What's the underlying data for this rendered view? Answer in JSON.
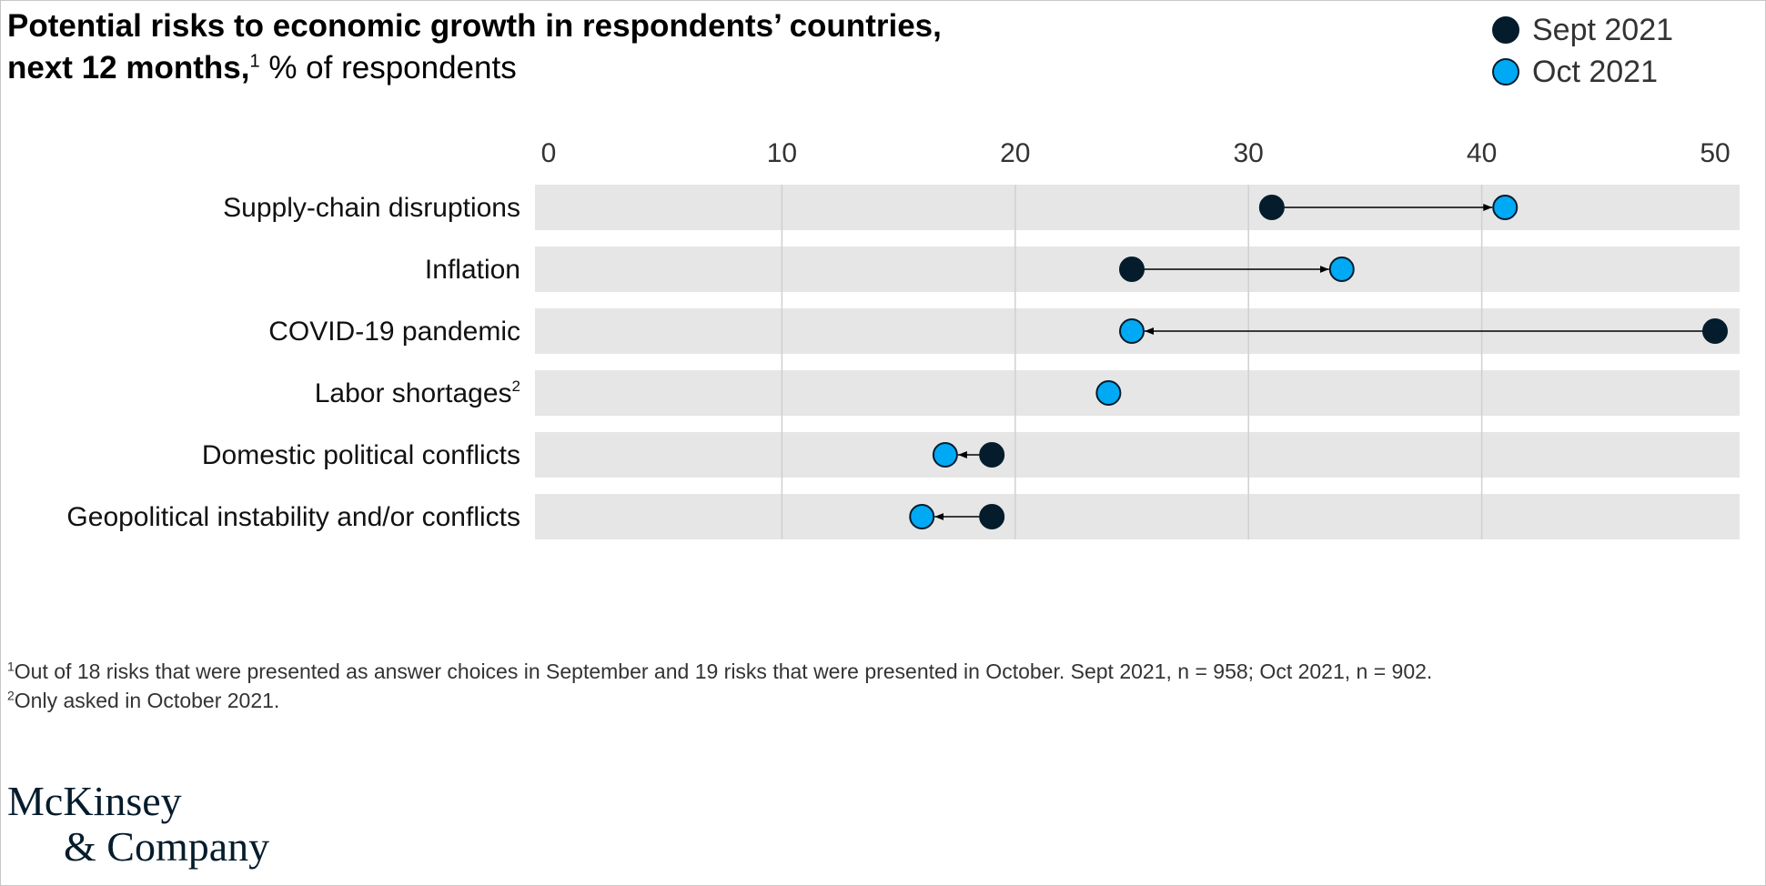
{
  "header": {
    "title_bold_line1": "Potential risks to economic growth in respondents’ countries,",
    "title_bold_line2": "next 12 months,",
    "title_footnote_mark": "1",
    "title_unit": "% of respondents"
  },
  "legend": {
    "items": [
      {
        "label": "Sept 2021",
        "color": "#051c2c"
      },
      {
        "label": "Oct 2021",
        "color": "#00a9f4"
      }
    ]
  },
  "chart_data": {
    "type": "dumbbell",
    "title": "Potential risks to economic growth in respondents’ countries, next 12 months, % of respondents",
    "xlim": [
      0,
      50
    ],
    "x_ticks": [
      0,
      10,
      20,
      30,
      40,
      50
    ],
    "grid": true,
    "legend_position": "top-right",
    "categories": [
      {
        "label": "Supply-chain disruptions",
        "sup": ""
      },
      {
        "label": "Inflation",
        "sup": ""
      },
      {
        "label": "COVID-19 pandemic",
        "sup": ""
      },
      {
        "label": "Labor shortages",
        "sup": "2"
      },
      {
        "label": "Domestic political conflicts",
        "sup": ""
      },
      {
        "label": "Geopolitical instability and/or conflicts",
        "sup": ""
      }
    ],
    "series": [
      {
        "name": "Sept 2021",
        "color": "#051c2c",
        "values": [
          31,
          25,
          50,
          null,
          19,
          19
        ]
      },
      {
        "name": "Oct 2021",
        "color": "#00a9f4",
        "values": [
          41,
          34,
          25,
          24,
          17,
          16
        ]
      }
    ]
  },
  "notes": {
    "note1_mark": "1",
    "note1_text": "Out of 18 risks that were presented as answer choices in September and 19 risks that were presented in October. Sept 2021, n = 958; Oct 2021, n = 902.",
    "note2_mark": "2",
    "note2_text": "Only asked in October 2021."
  },
  "logo": {
    "line1": "McKinsey",
    "line2": "& Company"
  }
}
